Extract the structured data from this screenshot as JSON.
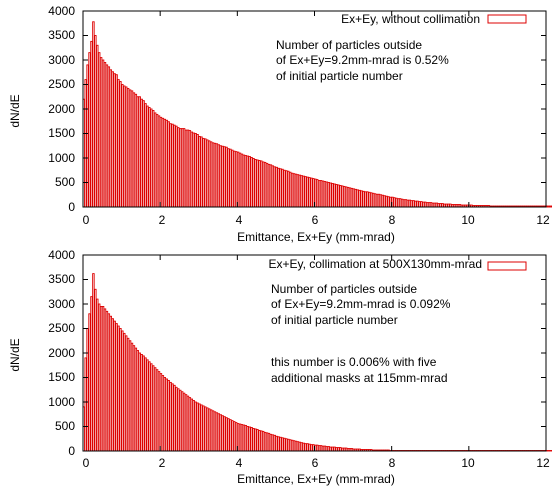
{
  "colors": {
    "bar_stroke": "#dd0000",
    "bar_fill": "#ffffff",
    "axis": "#000000",
    "text": "#000000"
  },
  "chart_data": [
    {
      "type": "bar",
      "xlabel": "Emittance, Ex+Ey (mm-mrad)",
      "ylabel": "dN/dE",
      "xlim": [
        0,
        12
      ],
      "ylim": [
        0,
        4000
      ],
      "xticks": [
        "0",
        "2",
        "4",
        "6",
        "8",
        "10",
        "12"
      ],
      "yticks": [
        "0",
        "500",
        "1000",
        "1500",
        "2000",
        "2500",
        "3000",
        "3500",
        "4000"
      ],
      "grid": false,
      "legend_position": "top-right",
      "bin_width": 0.05,
      "series": [
        {
          "name": "Ex+Ey, without collimation",
          "values": [
            2200,
            2600,
            2900,
            3150,
            3380,
            3780,
            3500,
            3300,
            3150,
            3050,
            3000,
            2950,
            2900,
            2860,
            2800,
            2760,
            2720,
            2700,
            2600,
            2560,
            2500,
            2470,
            2450,
            2420,
            2390,
            2370,
            2330,
            2300,
            2250,
            2250,
            2200,
            2170,
            2110,
            2060,
            2030,
            2000,
            1970,
            1920,
            1890,
            1860,
            1830,
            1810,
            1790,
            1770,
            1740,
            1700,
            1690,
            1670,
            1650,
            1620,
            1600,
            1600,
            1600,
            1570,
            1570,
            1560,
            1530,
            1510,
            1500,
            1480,
            1440,
            1430,
            1400,
            1390,
            1370,
            1350,
            1330,
            1310,
            1300,
            1290,
            1270,
            1250,
            1240,
            1230,
            1220,
            1190,
            1180,
            1160,
            1140,
            1130,
            1120,
            1100,
            1080,
            1060,
            1050,
            1040,
            1030,
            1010,
            990,
            970,
            960,
            950,
            940,
            920,
            910,
            890,
            870,
            860,
            840,
            820,
            810,
            790,
            780,
            770,
            750,
            740,
            730,
            710,
            690,
            680,
            670,
            660,
            650,
            640,
            630,
            620,
            610,
            600,
            590,
            580,
            570,
            560,
            540,
            540,
            530,
            520,
            510,
            500,
            490,
            480,
            470,
            460,
            450,
            440,
            430,
            420,
            410,
            400,
            390,
            380,
            370,
            360,
            350,
            340,
            330,
            320,
            310,
            310,
            300,
            290,
            280,
            270,
            260,
            260,
            250,
            240,
            230,
            220,
            210,
            200,
            200,
            190,
            180,
            170,
            170,
            160,
            150,
            150,
            140,
            140,
            130,
            130,
            120,
            120,
            110,
            110,
            100,
            100,
            90,
            90,
            90,
            80,
            80,
            80,
            70,
            70,
            70,
            60,
            60,
            60,
            60,
            50,
            50,
            50,
            50,
            50,
            40,
            40,
            40,
            40,
            40,
            40,
            30,
            30,
            30,
            30,
            30,
            30,
            30,
            30,
            30,
            20,
            20,
            20,
            20,
            20,
            20,
            20,
            20,
            20,
            20,
            20,
            20,
            20,
            20,
            20,
            20,
            20,
            20,
            20,
            20,
            20,
            20,
            20,
            20,
            20,
            20,
            20,
            20,
            20,
            20,
            20,
            20,
            20,
            20,
            20,
            20,
            20,
            20,
            20,
            20,
            20,
            20
          ]
        }
      ],
      "annotations": [
        "Number of particles outside",
        "of Ex+Ey=9.2mm-mrad is 0.52%",
        "of initial particle number"
      ]
    },
    {
      "type": "bar",
      "xlabel": "Emittance, Ex+Ey (mm-mrad)",
      "ylabel": "dN/dE",
      "xlim": [
        0,
        12
      ],
      "ylim": [
        0,
        4000
      ],
      "xticks": [
        "0",
        "2",
        "4",
        "6",
        "8",
        "10",
        "12"
      ],
      "yticks": [
        "0",
        "500",
        "1000",
        "1500",
        "2000",
        "2500",
        "3000",
        "3500",
        "4000"
      ],
      "grid": false,
      "legend_position": "top-right",
      "bin_width": 0.05,
      "series": [
        {
          "name": "Ex+Ey, collimation at 500X130mm-mrad",
          "values": [
            900,
            1900,
            2500,
            2800,
            3150,
            3620,
            3300,
            3100,
            3000,
            2950,
            2950,
            2900,
            2850,
            2800,
            2750,
            2700,
            2650,
            2600,
            2550,
            2500,
            2450,
            2400,
            2350,
            2300,
            2250,
            2200,
            2150,
            2100,
            2050,
            2000,
            1970,
            1940,
            1900,
            1860,
            1820,
            1780,
            1740,
            1700,
            1660,
            1620,
            1580,
            1540,
            1500,
            1470,
            1440,
            1400,
            1370,
            1340,
            1300,
            1270,
            1240,
            1210,
            1180,
            1150,
            1120,
            1090,
            1060,
            1030,
            1000,
            980,
            960,
            940,
            920,
            900,
            880,
            860,
            840,
            820,
            800,
            780,
            760,
            740,
            720,
            700,
            680,
            660,
            640,
            620,
            600,
            580,
            560,
            550,
            540,
            530,
            520,
            500,
            490,
            480,
            460,
            450,
            440,
            420,
            410,
            400,
            380,
            370,
            360,
            340,
            330,
            320,
            300,
            290,
            280,
            270,
            260,
            250,
            240,
            230,
            220,
            210,
            200,
            190,
            180,
            170,
            160,
            150,
            150,
            140,
            130,
            130,
            120,
            120,
            110,
            110,
            100,
            100,
            90,
            90,
            80,
            80,
            80,
            70,
            70,
            70,
            60,
            60,
            60,
            50,
            50,
            50,
            40,
            40,
            40,
            40,
            30,
            30,
            30,
            30,
            30,
            30,
            20,
            20,
            20,
            20,
            20,
            20,
            20,
            20,
            20,
            10,
            10,
            10,
            10,
            10,
            10,
            10,
            10,
            10,
            10,
            10,
            10,
            10,
            10,
            10,
            10,
            10,
            10,
            10,
            10,
            10,
            10,
            10,
            10,
            10,
            10,
            10,
            10,
            10,
            10,
            10,
            10,
            10,
            10,
            10,
            10,
            10,
            10,
            10,
            10,
            10,
            10,
            10,
            10,
            10,
            10,
            10,
            10,
            10,
            10,
            10,
            10,
            10,
            10,
            10,
            10,
            10,
            10,
            10,
            10,
            10,
            10,
            10,
            10,
            10,
            10,
            10,
            10,
            10,
            10,
            10,
            10,
            10,
            10,
            10,
            10,
            10,
            10,
            10,
            10,
            10,
            10,
            10,
            10,
            10,
            10,
            10,
            10,
            10,
            10
          ]
        }
      ],
      "annotations": [
        "Number of particles outside",
        "of Ex+Ey=9.2mm-mrad is 0.092%",
        "of initial particle number",
        "this number is 0.006% with five",
        "additional masks at 115mm-mrad"
      ]
    }
  ]
}
